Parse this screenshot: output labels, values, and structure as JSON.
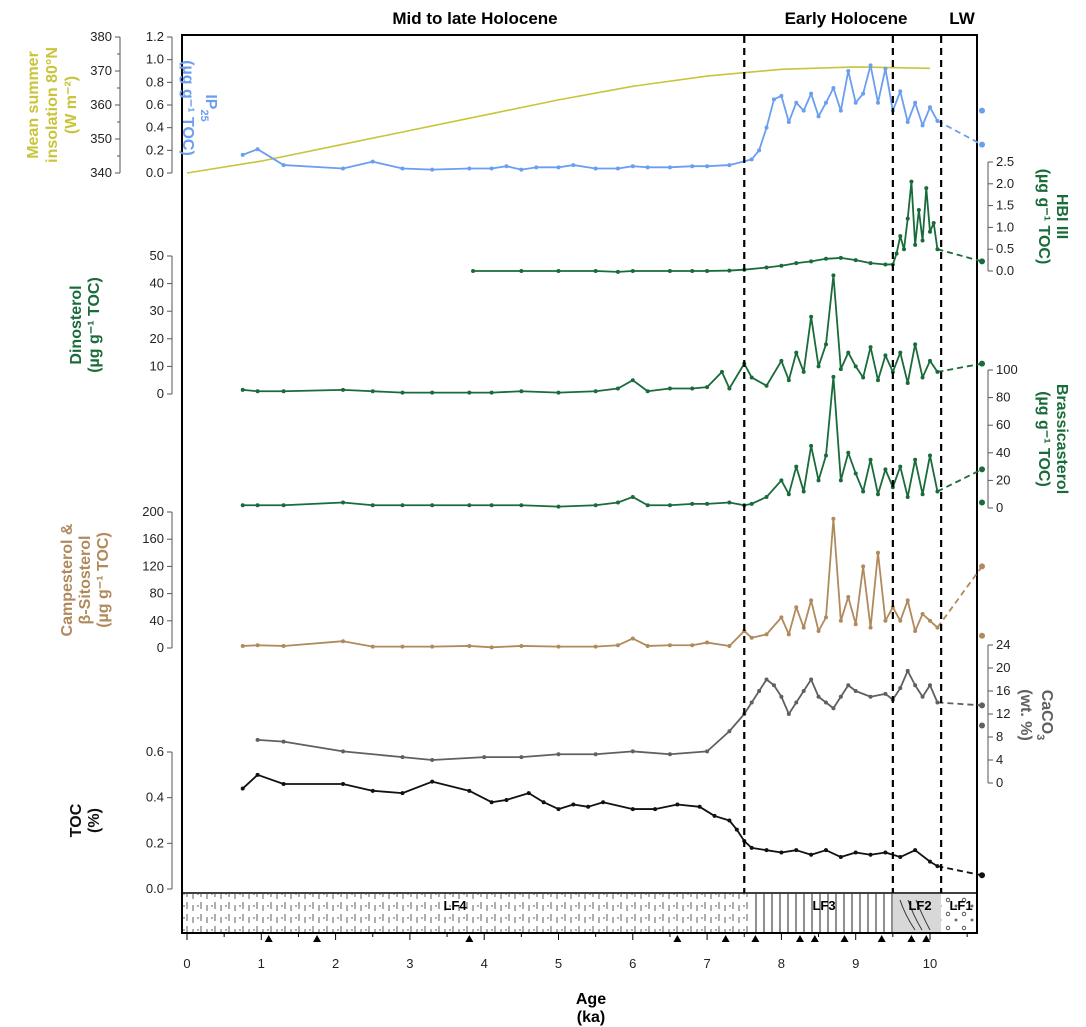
{
  "periods": [
    {
      "label": "Mid to late Holocene",
      "from": 0,
      "to": 7.5
    },
    {
      "label": "Early Holocene",
      "from": 7.5,
      "to": 9.55
    },
    {
      "label": "LW",
      "from": 9.55,
      "to": 10.7
    }
  ],
  "boundaries": [
    7.5,
    9.5,
    10.15
  ],
  "x_axis": {
    "label_line1": "Age",
    "label_line2": "(ka)",
    "range": [
      0,
      10.7
    ],
    "ticks": [
      0,
      1,
      2,
      3,
      4,
      5,
      6,
      7,
      8,
      9,
      10
    ]
  },
  "lithofacies": [
    {
      "label": "LF4",
      "from": 0,
      "to": 7.6
    },
    {
      "label": "LF3",
      "from": 7.6,
      "to": 9.5
    },
    {
      "label": "LF2",
      "from": 9.5,
      "to": 10.15
    },
    {
      "label": "LF1",
      "from": 10.15,
      "to": 10.7
    }
  ],
  "triangles": [
    1.1,
    1.75,
    3.8,
    6.6,
    7.25,
    7.65,
    8.25,
    8.45,
    8.85,
    9.35,
    9.75,
    9.95
  ],
  "chart_data": [
    {
      "type": "line",
      "name": "insolation",
      "ylabel": [
        "Mean summer",
        "insolation 80°N",
        "(W m⁻²)"
      ],
      "ylim": [
        340,
        380
      ],
      "yticks": [
        340,
        350,
        360,
        370,
        380
      ],
      "color": "#c9c43a",
      "x": [
        0,
        1,
        2,
        3,
        4,
        5,
        6,
        7,
        8,
        9,
        10
      ],
      "y": [
        340,
        343.5,
        348,
        352.5,
        357,
        361.5,
        365.5,
        368.5,
        370.5,
        371.2,
        370.8
      ]
    },
    {
      "type": "line",
      "name": "IP25",
      "ylabel": [
        "IP",
        "25",
        "(µg g⁻¹ TOC)"
      ],
      "ylim": [
        0,
        1.2
      ],
      "yticks": [
        0.0,
        0.2,
        0.4,
        0.6,
        0.8,
        1.0,
        1.2
      ],
      "color": "#6b9ef0",
      "x": [
        0.75,
        0.95,
        1.3,
        2.1,
        2.5,
        2.9,
        3.3,
        3.8,
        4.1,
        4.3,
        4.5,
        4.7,
        5.0,
        5.2,
        5.5,
        5.8,
        6.0,
        6.2,
        6.5,
        6.8,
        7.0,
        7.3,
        7.6,
        7.7,
        7.8,
        7.9,
        8.0,
        8.1,
        8.2,
        8.3,
        8.4,
        8.5,
        8.6,
        8.7,
        8.8,
        8.9,
        9.0,
        9.1,
        9.2,
        9.3,
        9.4,
        9.5,
        9.6,
        9.7,
        9.8,
        9.9,
        10.0,
        10.1
      ],
      "y": [
        0.16,
        0.21,
        0.07,
        0.04,
        0.1,
        0.04,
        0.03,
        0.04,
        0.04,
        0.06,
        0.03,
        0.05,
        0.05,
        0.07,
        0.04,
        0.04,
        0.06,
        0.05,
        0.05,
        0.06,
        0.06,
        0.07,
        0.12,
        0.2,
        0.4,
        0.65,
        0.68,
        0.45,
        0.62,
        0.55,
        0.7,
        0.5,
        0.62,
        0.75,
        0.55,
        0.9,
        0.62,
        0.7,
        0.95,
        0.62,
        0.92,
        0.55,
        0.72,
        0.45,
        0.62,
        0.42,
        0.58,
        0.46
      ],
      "extension": {
        "x": [
          10.1,
          10.7
        ],
        "y": [
          0.46,
          0.25
        ],
        "points": [
          [
            10.7,
            0.55
          ],
          [
            10.7,
            0.25
          ]
        ]
      }
    },
    {
      "type": "line",
      "name": "HBI III",
      "ylabel": [
        "HBI III",
        "(µg g⁻¹ TOC)"
      ],
      "ylim": [
        0,
        2.5
      ],
      "yticks": [
        0.0,
        0.5,
        1.0,
        1.5,
        2.0,
        2.5
      ],
      "color": "#1a6b3a",
      "x": [
        3.85,
        4.5,
        5.0,
        5.5,
        5.8,
        6.0,
        6.5,
        6.8,
        7.0,
        7.3,
        7.5,
        7.8,
        8.0,
        8.2,
        8.4,
        8.6,
        8.8,
        9.0,
        9.2,
        9.4,
        9.5,
        9.55,
        9.6,
        9.65,
        9.7,
        9.75,
        9.8,
        9.85,
        9.9,
        9.95,
        10.0,
        10.05,
        10.1
      ],
      "y": [
        0.0,
        0.0,
        0.0,
        0.0,
        -0.02,
        0.0,
        0.0,
        0.0,
        0.0,
        0.01,
        0.03,
        0.08,
        0.12,
        0.18,
        0.22,
        0.28,
        0.3,
        0.25,
        0.18,
        0.15,
        0.15,
        0.4,
        0.8,
        0.5,
        1.2,
        2.05,
        0.6,
        1.4,
        0.7,
        1.9,
        0.9,
        1.1,
        0.5
      ],
      "extension": {
        "x": [
          10.1,
          10.7
        ],
        "y": [
          0.5,
          0.22
        ],
        "points": [
          [
            10.7,
            0.22
          ]
        ]
      }
    },
    {
      "type": "line",
      "name": "Dinosterol",
      "ylabel": [
        "Dinosterol",
        "(µg g⁻¹ TOC)"
      ],
      "ylim": [
        0,
        50
      ],
      "yticks": [
        0,
        10,
        20,
        30,
        40,
        50
      ],
      "color": "#1a6b3a",
      "x": [
        0.75,
        0.95,
        1.3,
        2.1,
        2.5,
        2.9,
        3.3,
        3.8,
        4.1,
        4.5,
        5.0,
        5.5,
        5.8,
        6.0,
        6.2,
        6.5,
        6.8,
        7.0,
        7.2,
        7.3,
        7.5,
        7.6,
        7.8,
        8.0,
        8.1,
        8.2,
        8.3,
        8.4,
        8.5,
        8.6,
        8.7,
        8.8,
        8.9,
        9.0,
        9.1,
        9.2,
        9.3,
        9.4,
        9.5,
        9.6,
        9.7,
        9.8,
        9.9,
        10.0,
        10.1
      ],
      "y": [
        1.5,
        1.0,
        1.0,
        1.5,
        1.0,
        0.5,
        0.5,
        0.5,
        0.5,
        1.0,
        0.5,
        1.0,
        2.0,
        5.0,
        1.0,
        2.0,
        2.0,
        2.5,
        8.0,
        2.0,
        11.0,
        6.0,
        3.0,
        12.0,
        5.0,
        15.0,
        8.0,
        28.0,
        10.0,
        18.0,
        43.0,
        9.0,
        15.0,
        10.0,
        6.0,
        17.0,
        5.0,
        14.0,
        8.0,
        15.0,
        4.0,
        18.0,
        6.0,
        12.0,
        8.0
      ],
      "extension": {
        "x": [
          10.1,
          10.7
        ],
        "y": [
          8.0,
          11.0
        ],
        "points": [
          [
            10.7,
            11.0
          ]
        ]
      }
    },
    {
      "type": "line",
      "name": "Brassicasterol",
      "ylabel": [
        "Brassicasterol",
        "(µg g⁻¹ TOC)"
      ],
      "ylim": [
        0,
        100
      ],
      "yticks": [
        0,
        20,
        40,
        60,
        80,
        100
      ],
      "color": "#1a6b3a",
      "x": [
        0.75,
        0.95,
        1.3,
        2.1,
        2.5,
        2.9,
        3.3,
        3.8,
        4.1,
        4.5,
        5.0,
        5.5,
        5.8,
        6.0,
        6.2,
        6.5,
        6.8,
        7.0,
        7.3,
        7.5,
        7.6,
        7.8,
        8.0,
        8.1,
        8.2,
        8.3,
        8.4,
        8.5,
        8.6,
        8.7,
        8.8,
        8.9,
        9.0,
        9.1,
        9.2,
        9.3,
        9.4,
        9.5,
        9.6,
        9.7,
        9.8,
        9.9,
        10.0,
        10.1
      ],
      "y": [
        2.0,
        2.0,
        2.0,
        4.0,
        2.0,
        2.0,
        2.0,
        2.0,
        2.0,
        2.0,
        1.0,
        2.0,
        4.0,
        8.0,
        2.0,
        2.0,
        3.0,
        3.0,
        4.0,
        2.0,
        3.0,
        8.0,
        20.0,
        10.0,
        30.0,
        12.0,
        45.0,
        20.0,
        38.0,
        95.0,
        20.0,
        40.0,
        25.0,
        12.0,
        35.0,
        10.0,
        28.0,
        15.0,
        30.0,
        8.0,
        35.0,
        10.0,
        38.0,
        12.0
      ],
      "extension": {
        "x": [
          10.1,
          10.7
        ],
        "y": [
          12.0,
          28.0
        ],
        "points": [
          [
            10.7,
            28.0
          ],
          [
            10.7,
            4.0
          ]
        ]
      }
    },
    {
      "type": "line",
      "name": "Campesterol",
      "ylabel": [
        "Campesterol &",
        "β-Sitosterol",
        "(µg g⁻¹ TOC)"
      ],
      "ylim": [
        0,
        200
      ],
      "yticks": [
        0,
        40,
        80,
        120,
        160,
        200
      ],
      "color": "#b08a5c",
      "x": [
        0.75,
        0.95,
        1.3,
        2.1,
        2.5,
        2.9,
        3.3,
        3.8,
        4.1,
        4.5,
        5.0,
        5.5,
        5.8,
        6.0,
        6.2,
        6.5,
        6.8,
        7.0,
        7.3,
        7.5,
        7.6,
        7.8,
        8.0,
        8.1,
        8.2,
        8.3,
        8.4,
        8.5,
        8.6,
        8.7,
        8.8,
        8.9,
        9.0,
        9.1,
        9.2,
        9.3,
        9.4,
        9.5,
        9.6,
        9.7,
        9.8,
        9.9,
        10.0,
        10.1
      ],
      "y": [
        3,
        4,
        3,
        10,
        2,
        2,
        2,
        3,
        1,
        3,
        2,
        2,
        4,
        14,
        3,
        4,
        4,
        8,
        3,
        25,
        15,
        20,
        45,
        20,
        60,
        30,
        70,
        25,
        45,
        190,
        40,
        75,
        35,
        120,
        30,
        140,
        40,
        60,
        40,
        70,
        25,
        50,
        40,
        30
      ],
      "extension": {
        "x": [
          10.1,
          10.7
        ],
        "y": [
          30,
          120
        ],
        "points": [
          [
            10.7,
            120
          ],
          [
            10.7,
            18
          ]
        ]
      }
    },
    {
      "type": "line",
      "name": "CaCO3",
      "ylabel": [
        "CaCO",
        "3",
        "(wt. %)"
      ],
      "ylim": [
        0,
        24
      ],
      "yticks": [
        0,
        4,
        8,
        12,
        16,
        20,
        24
      ],
      "color": "#606060",
      "x": [
        0.95,
        1.3,
        2.1,
        2.9,
        3.3,
        4.0,
        4.5,
        5.0,
        5.5,
        6.0,
        6.5,
        7.0,
        7.3,
        7.5,
        7.6,
        7.7,
        7.8,
        7.9,
        8.0,
        8.1,
        8.2,
        8.3,
        8.4,
        8.5,
        8.6,
        8.7,
        8.8,
        8.9,
        9.0,
        9.2,
        9.4,
        9.5,
        9.6,
        9.7,
        9.8,
        9.9,
        10.0,
        10.1
      ],
      "y": [
        7.5,
        7.2,
        5.5,
        4.5,
        4.0,
        4.5,
        4.5,
        5.0,
        5.0,
        5.5,
        5.0,
        5.5,
        9.0,
        12.0,
        14.0,
        16.0,
        18.0,
        17.0,
        15.0,
        12.0,
        14.0,
        16.0,
        18.0,
        15.0,
        14.0,
        13.0,
        15.0,
        17.0,
        16.0,
        15.0,
        15.5,
        14.5,
        16.5,
        19.5,
        17.0,
        15.0,
        17.0,
        14.0
      ],
      "extension": {
        "x": [
          10.1,
          10.7
        ],
        "y": [
          14.0,
          13.5
        ],
        "points": [
          [
            10.7,
            13.5
          ],
          [
            10.7,
            10.0
          ]
        ]
      }
    },
    {
      "type": "line",
      "name": "TOC",
      "ylabel": [
        "TOC",
        "(%)"
      ],
      "ylim": [
        0,
        0.6
      ],
      "yticks": [
        0.0,
        0.2,
        0.4,
        0.6
      ],
      "color": "#111111",
      "x": [
        0.75,
        0.95,
        1.3,
        2.1,
        2.5,
        2.9,
        3.3,
        3.8,
        4.1,
        4.3,
        4.6,
        4.8,
        5.0,
        5.2,
        5.4,
        5.6,
        6.0,
        6.3,
        6.6,
        6.9,
        7.1,
        7.3,
        7.4,
        7.5,
        7.6,
        7.8,
        8.0,
        8.2,
        8.4,
        8.6,
        8.8,
        9.0,
        9.2,
        9.4,
        9.6,
        9.8,
        10.0,
        10.1
      ],
      "y": [
        0.44,
        0.5,
        0.46,
        0.46,
        0.43,
        0.42,
        0.47,
        0.43,
        0.38,
        0.39,
        0.42,
        0.38,
        0.35,
        0.37,
        0.36,
        0.38,
        0.35,
        0.35,
        0.37,
        0.36,
        0.32,
        0.3,
        0.26,
        0.21,
        0.18,
        0.17,
        0.16,
        0.17,
        0.15,
        0.17,
        0.14,
        0.16,
        0.15,
        0.16,
        0.14,
        0.17,
        0.12,
        0.1
      ],
      "extension": {
        "x": [
          10.1,
          10.7
        ],
        "y": [
          0.1,
          0.06
        ],
        "points": [
          [
            10.7,
            0.06
          ]
        ]
      }
    }
  ]
}
